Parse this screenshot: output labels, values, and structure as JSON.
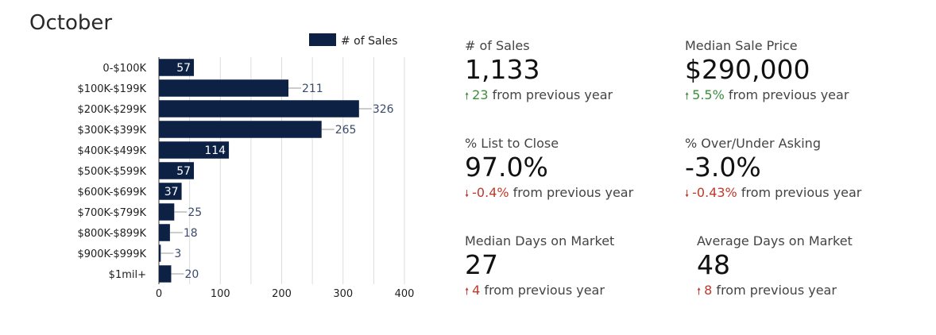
{
  "month_title": "October",
  "colors": {
    "bar": "#0d2145",
    "grid": "#dcdcdc",
    "green": "#3a8f3a",
    "red": "#c0392b"
  },
  "chart_data": {
    "type": "bar",
    "orientation": "horizontal",
    "categories": [
      "0-$100K",
      "$100K-$199K",
      "$200K-$299K",
      "$300K-$399K",
      "$400K-$499K",
      "$500K-$599K",
      "$600K-$699K",
      "$700K-$799K",
      "$800K-$899K",
      "$900K-$999K",
      "$1mil+"
    ],
    "series": [
      {
        "name": "# of Sales",
        "values": [
          57,
          211,
          326,
          265,
          114,
          57,
          37,
          25,
          18,
          3,
          20
        ]
      }
    ],
    "xlim": [
      0,
      400
    ],
    "xticks": [
      0,
      100,
      200,
      300,
      400
    ],
    "grid": true,
    "legend_position": "top-right"
  },
  "stats": [
    {
      "label": "# of Sales",
      "value": "1,133",
      "direction": "up",
      "color": "green",
      "delta": "23",
      "suffix": " from previous year"
    },
    {
      "label": "Median Sale Price",
      "value": "$290,000",
      "direction": "up",
      "color": "green",
      "delta": "5.5%",
      "suffix": " from previous year"
    },
    {
      "label": "% List to Close",
      "value": "97.0%",
      "direction": "down",
      "color": "red",
      "delta": "-0.4%",
      "suffix": " from previous year"
    },
    {
      "label": "% Over/Under Asking",
      "value": "-3.0%",
      "direction": "down",
      "color": "red",
      "delta": "-0.43%",
      "suffix": " from previous year"
    },
    {
      "label": "Median Days on Market",
      "value": "27",
      "direction": "up",
      "color": "red",
      "delta": "4",
      "suffix": " from previous year"
    },
    {
      "label": "Average Days on Market",
      "value": "48",
      "direction": "up",
      "color": "red",
      "delta": "8",
      "suffix": " from previous year"
    }
  ]
}
